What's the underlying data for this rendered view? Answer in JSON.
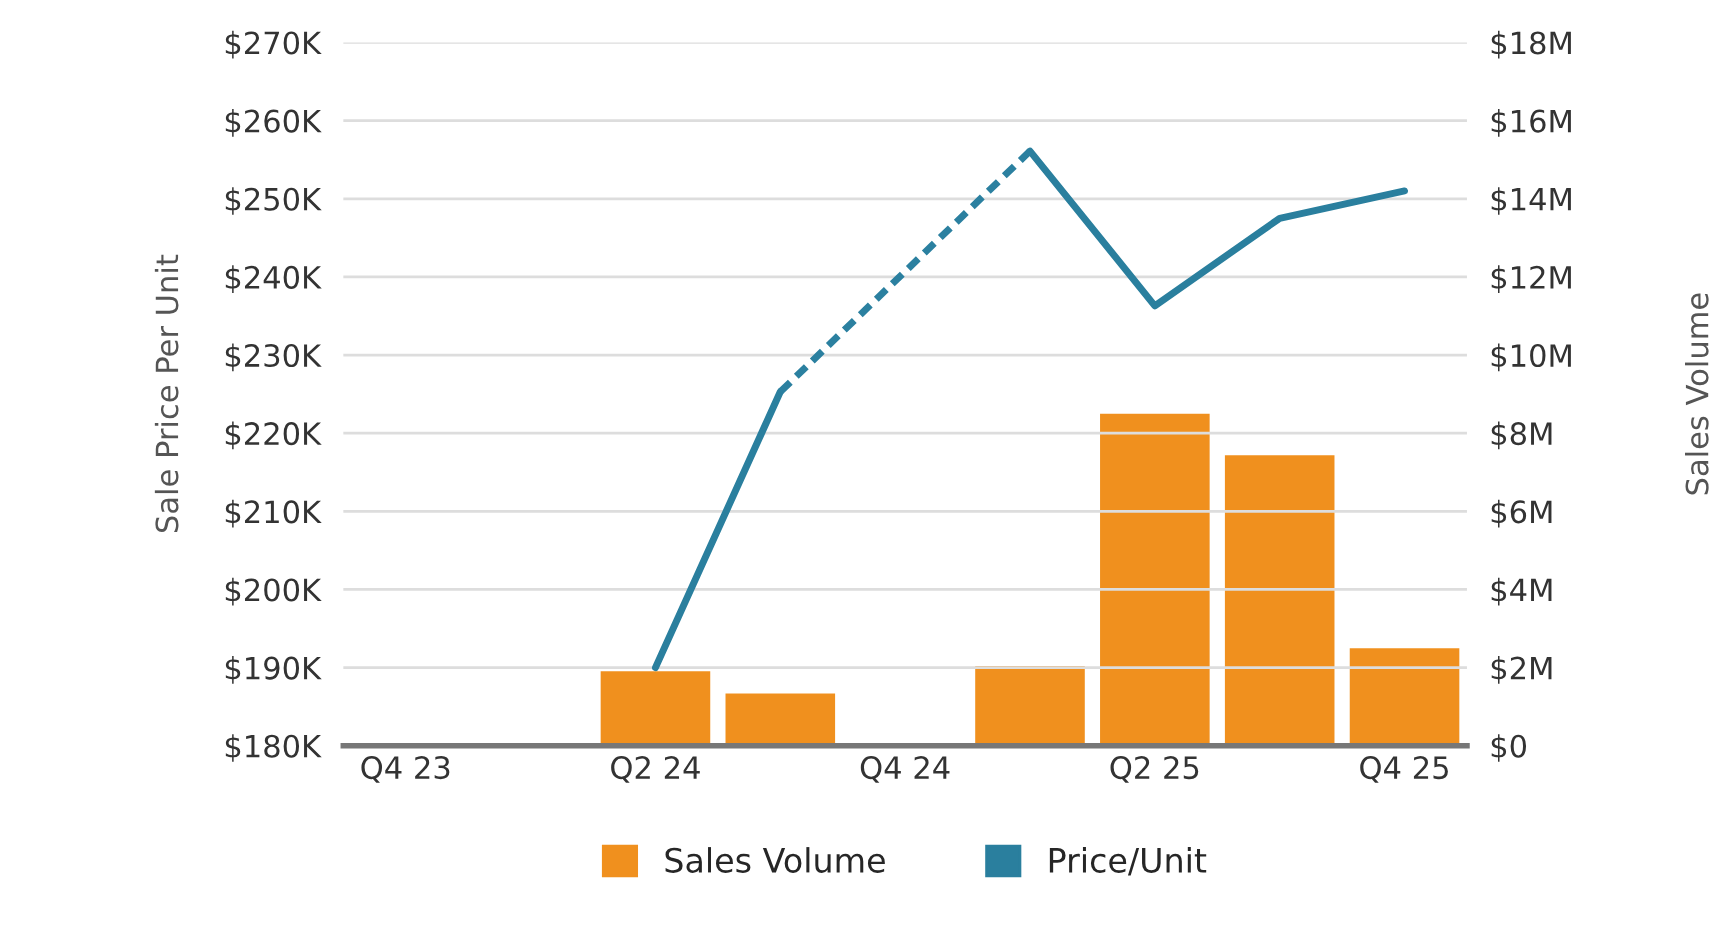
{
  "chart_data": {
    "type": "bar",
    "categories": [
      "Q4 23",
      null,
      "Q2 24",
      null,
      "Q4 24",
      null,
      "Q2 25",
      null,
      "Q4 25"
    ],
    "ylabel": "Sale Price Per Unit",
    "y2label": "Sales Volume",
    "series": [
      {
        "name": "Sales Volume",
        "axis": "y2",
        "color": "#f0901e",
        "values": [
          null,
          null,
          1.94,
          1.37,
          null,
          2.08,
          8.53,
          7.47,
          2.53
        ]
      },
      {
        "name": "Price/Unit",
        "type": "line",
        "axis": "y",
        "color": "#2a7f9e",
        "line_style": "solid",
        "values": [
          null,
          null,
          190.0,
          225.3,
          null,
          256.1,
          236.3,
          247.5,
          251.0
        ]
      },
      {
        "type": "line",
        "axis": "y",
        "color": "#2b80a0",
        "line_style": "dotted",
        "values": [
          null,
          null,
          null,
          225.3,
          240.7,
          256.1,
          null,
          null,
          null
        ]
      }
    ],
    "ylim": [
      180,
      270
    ],
    "yticks": [
      {
        "value": 180,
        "label": "$180K"
      },
      {
        "value": 190,
        "label": "$190K"
      },
      {
        "value": 200,
        "label": "$200K"
      },
      {
        "value": 210,
        "label": "$210K"
      },
      {
        "value": 220,
        "label": "$220K"
      },
      {
        "value": 230,
        "label": "$230K"
      },
      {
        "value": 240,
        "label": "$240K"
      },
      {
        "value": 250,
        "label": "$250K"
      },
      {
        "value": 260,
        "label": "$260K"
      },
      {
        "value": 270,
        "label": "$270K"
      }
    ],
    "y2lim": [
      0,
      18
    ],
    "y2ticks": [
      {
        "value": 0,
        "label": "$0"
      },
      {
        "value": 2,
        "label": "$2M"
      },
      {
        "value": 4,
        "label": "$4M"
      },
      {
        "value": 6,
        "label": "$6M"
      },
      {
        "value": 8,
        "label": "$8M"
      },
      {
        "value": 10,
        "label": "$10M"
      },
      {
        "value": 12,
        "label": "$12M"
      },
      {
        "value": 14,
        "label": "$14M"
      },
      {
        "value": 16,
        "label": "$16M"
      },
      {
        "value": 18,
        "label": "$18M"
      }
    ],
    "grid": "y",
    "legend": "bottom",
    "marker": "none"
  }
}
